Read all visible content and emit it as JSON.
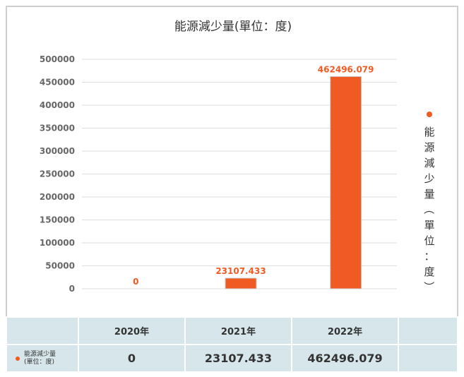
{
  "chart_data": {
    "type": "bar",
    "title": "能源減少量(單位：度)",
    "categories": [
      "2020年",
      "2021年",
      "2022年"
    ],
    "series": [
      {
        "name": "能源減少量（單位：度）",
        "values": [
          0,
          23107.433,
          462496.079
        ],
        "color": "#f05a23"
      }
    ],
    "data_labels": [
      "0",
      "23107.433",
      "462496.079"
    ],
    "ylim": [
      0,
      500000
    ],
    "yticks": [
      "0",
      "50000",
      "100000",
      "150000",
      "200000",
      "250000",
      "300000",
      "350000",
      "400000",
      "450000",
      "500000"
    ],
    "grid": true,
    "legend_position": "right"
  },
  "table": {
    "row_label_line1": "能源減少量",
    "row_label_line2": "(單位：度)"
  }
}
